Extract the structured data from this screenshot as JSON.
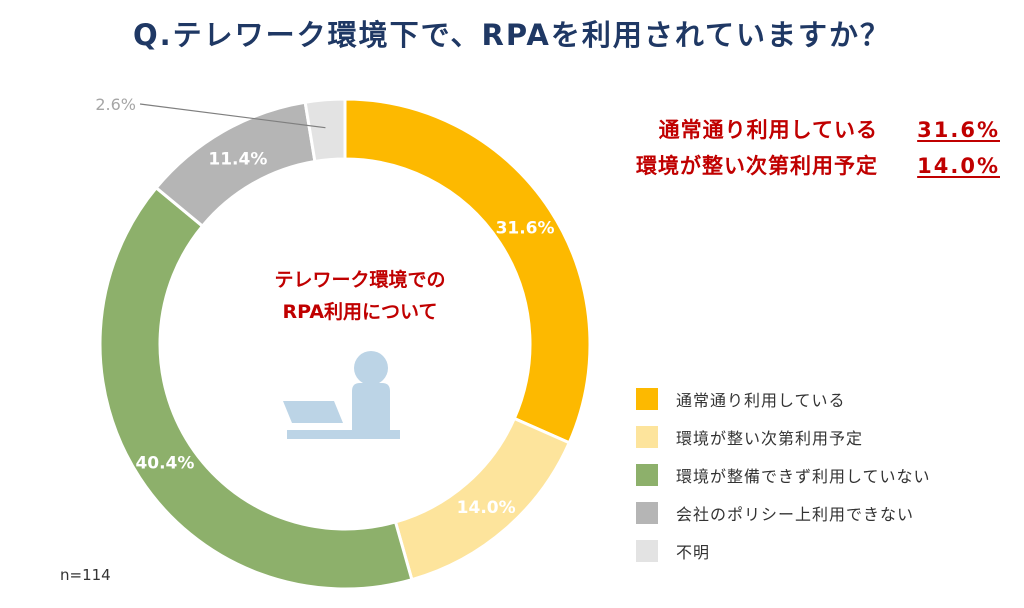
{
  "title": "Q.テレワーク環境下で、RPAを利用されていますか？",
  "highlights": [
    {
      "label": "通常通り利用している",
      "value": "31.6%"
    },
    {
      "label": "環境が整い次第利用予定",
      "value": "14.0%"
    }
  ],
  "center_label": {
    "line1": "テレワーク環境での",
    "line2": "RPA利用について"
  },
  "sample_size": "n=114",
  "illustration_icon": "person-at-laptop-icon",
  "colors": {
    "title": "#1f3864",
    "accent": "#c00000",
    "icon": "#bcd4e6"
  },
  "chart_data": {
    "type": "pie",
    "title": "Q.テレワーク環境下で、RPAを利用されていますか？",
    "slices": [
      {
        "label": "通常通り利用している",
        "value": 31.6,
        "display": "31.6%",
        "color": "#fdb900"
      },
      {
        "label": "環境が整い次第利用予定",
        "value": 14.0,
        "display": "14.0%",
        "color": "#fde49c"
      },
      {
        "label": "環境が整備できず利用していない",
        "value": 40.4,
        "display": "40.4%",
        "color": "#8db06b"
      },
      {
        "label": "会社のポリシー上利用できない",
        "value": 11.4,
        "display": "11.4%",
        "color": "#b5b5b5"
      },
      {
        "label": "不明",
        "value": 2.6,
        "display": "2.6%",
        "color": "#e3e3e3"
      }
    ],
    "legend_position": "bottom-right",
    "donut": true
  }
}
